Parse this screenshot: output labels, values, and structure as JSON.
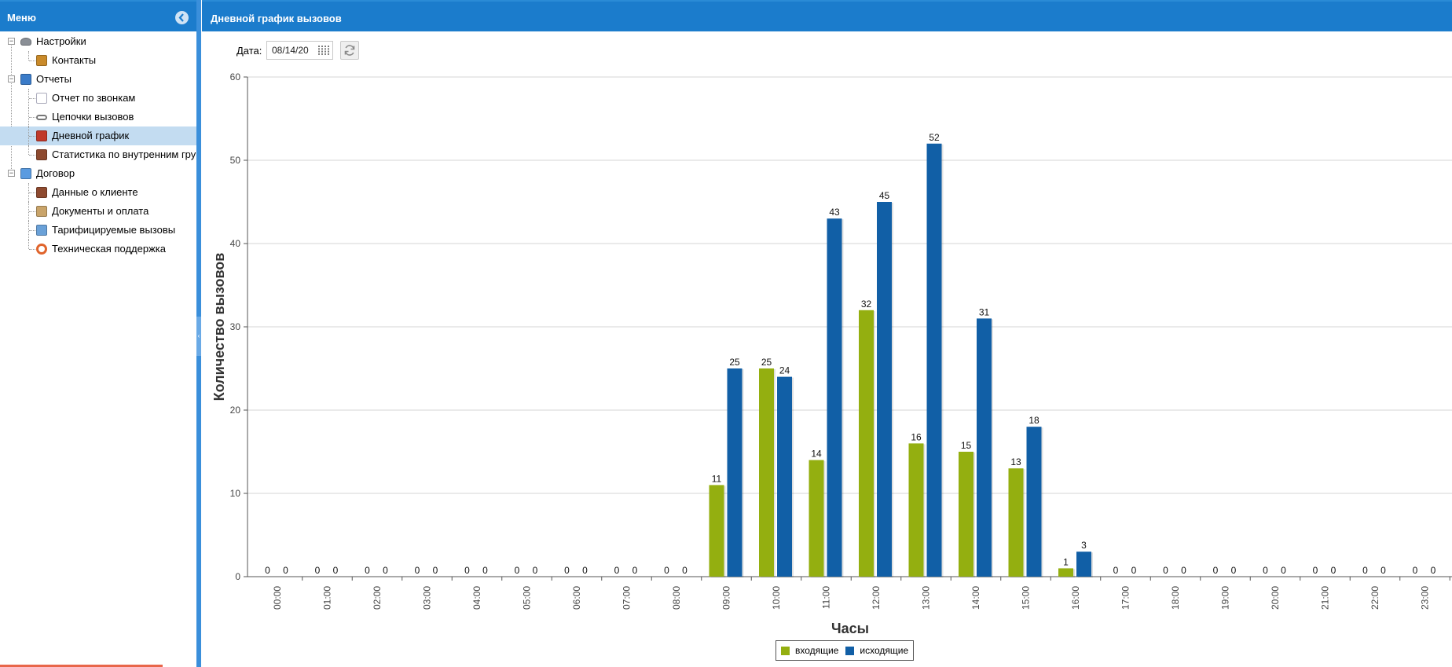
{
  "sidebar": {
    "title": "Меню",
    "collapse_icon": "chevron-left-icon",
    "items": [
      {
        "label": "Настройки",
        "level": 0,
        "icon": "settings-icon"
      },
      {
        "label": "Контакты",
        "level": 1,
        "icon": "contacts-icon"
      },
      {
        "label": "Отчеты",
        "level": 0,
        "icon": "reports-icon"
      },
      {
        "label": "Отчет по звонкам",
        "level": 1,
        "icon": "document-icon"
      },
      {
        "label": "Цепочки вызовов",
        "level": 1,
        "icon": "chain-icon"
      },
      {
        "label": "Дневной график",
        "level": 1,
        "icon": "bar-chart-icon",
        "selected": true
      },
      {
        "label": "Статистика по внутренним гру",
        "level": 1,
        "icon": "group-stats-icon"
      },
      {
        "label": "Договор",
        "level": 0,
        "icon": "contract-icon"
      },
      {
        "label": "Данные о клиенте",
        "level": 1,
        "icon": "client-icon"
      },
      {
        "label": "Документы и оплата",
        "level": 1,
        "icon": "payment-icon"
      },
      {
        "label": "Тарифицируемые вызовы",
        "level": 1,
        "icon": "calls-icon"
      },
      {
        "label": "Техническая поддержка",
        "level": 1,
        "icon": "support-icon"
      }
    ]
  },
  "main": {
    "title": "Дневной график вызовов",
    "date_label": "Дата:",
    "date_value": "08/14/20",
    "calendar_icon": "calendar-icon",
    "refresh_icon": "refresh-icon"
  },
  "colors": {
    "header": "#1b7ccc",
    "incoming": "#94af10",
    "outgoing": "#115fa6",
    "selected_row": "#c3dcf1"
  },
  "chart_data": {
    "type": "bar",
    "title": "",
    "xlabel": "Часы",
    "ylabel": "Количество вызовов",
    "ylim": [
      0,
      60
    ],
    "yticks": [
      0,
      10,
      20,
      30,
      40,
      50,
      60
    ],
    "grid": true,
    "legend_position": "bottom",
    "categories": [
      "00:00",
      "01:00",
      "02:00",
      "03:00",
      "04:00",
      "05:00",
      "06:00",
      "07:00",
      "08:00",
      "09:00",
      "10:00",
      "11:00",
      "12:00",
      "13:00",
      "14:00",
      "15:00",
      "16:00",
      "17:00",
      "18:00",
      "19:00",
      "20:00",
      "21:00",
      "22:00",
      "23:00"
    ],
    "series": [
      {
        "name": "входящие",
        "values": [
          0,
          0,
          0,
          0,
          0,
          0,
          0,
          0,
          0,
          11,
          25,
          14,
          32,
          16,
          15,
          13,
          1,
          0,
          0,
          0,
          0,
          0,
          0,
          0
        ]
      },
      {
        "name": "исходящие",
        "values": [
          0,
          0,
          0,
          0,
          0,
          0,
          0,
          0,
          0,
          25,
          24,
          43,
          45,
          52,
          31,
          18,
          3,
          0,
          0,
          0,
          0,
          0,
          0,
          0
        ]
      }
    ]
  }
}
